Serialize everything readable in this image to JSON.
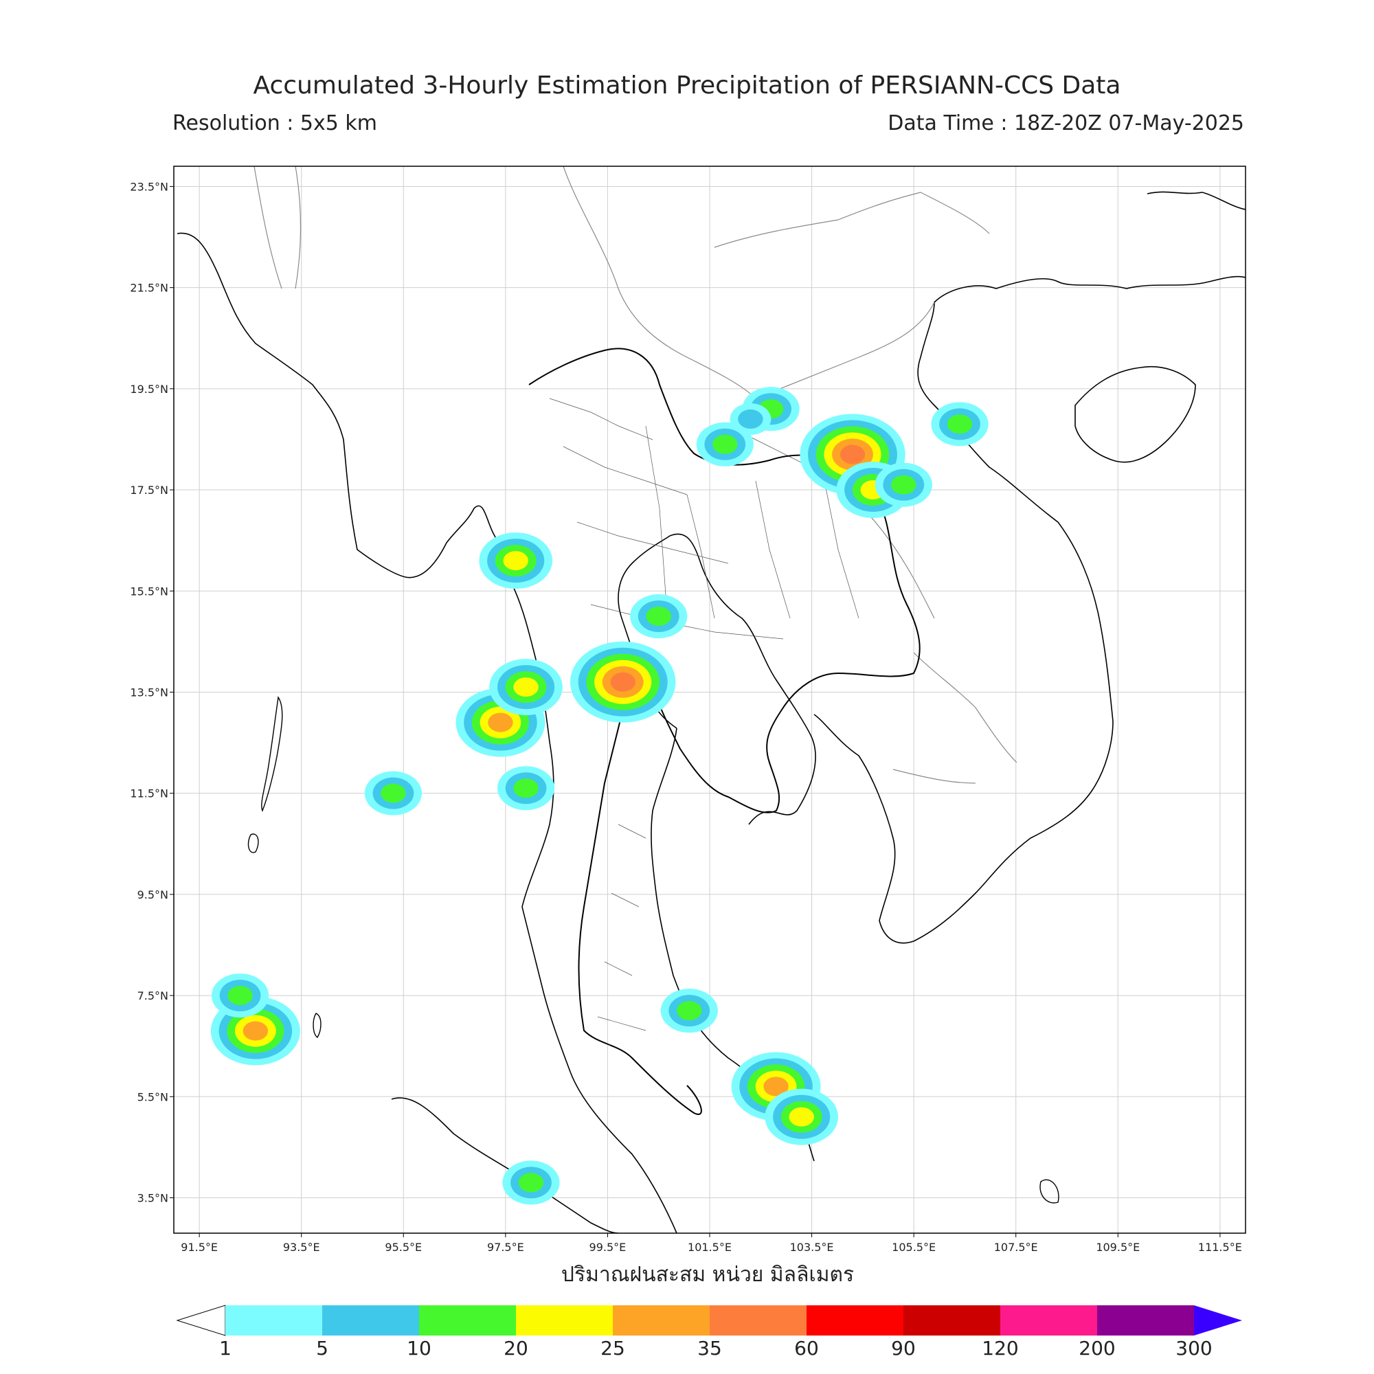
{
  "header": {
    "title": "Accumulated 3-Hourly Estimation Precipitation of PERSIANN-CCS Data",
    "resolution": "Resolution : 5x5 km",
    "data_time": "Data Time : 18Z-20Z 07-May-2025"
  },
  "map": {
    "lon_range": [
      91.0,
      112.0
    ],
    "lat_range": [
      2.8,
      23.9
    ],
    "lat_ticks": [
      {
        "value": 23.5,
        "label": "23.5°N"
      },
      {
        "value": 21.5,
        "label": "21.5°N"
      },
      {
        "value": 19.5,
        "label": "19.5°N"
      },
      {
        "value": 17.5,
        "label": "17.5°N"
      },
      {
        "value": 15.5,
        "label": "15.5°N"
      },
      {
        "value": 13.5,
        "label": "13.5°N"
      },
      {
        "value": 11.5,
        "label": "11.5°N"
      },
      {
        "value": 9.5,
        "label": "9.5°N"
      },
      {
        "value": 7.5,
        "label": "7.5°N"
      },
      {
        "value": 5.5,
        "label": "5.5°N"
      },
      {
        "value": 3.5,
        "label": "3.5°N"
      }
    ],
    "lon_ticks": [
      {
        "value": 91.5,
        "label": "91.5°E"
      },
      {
        "value": 93.5,
        "label": "93.5°E"
      },
      {
        "value": 95.5,
        "label": "95.5°E"
      },
      {
        "value": 97.5,
        "label": "97.5°E"
      },
      {
        "value": 99.5,
        "label": "99.5°E"
      },
      {
        "value": 101.5,
        "label": "101.5°E"
      },
      {
        "value": 103.5,
        "label": "103.5°E"
      },
      {
        "value": 105.5,
        "label": "105.5°E"
      },
      {
        "value": 107.5,
        "label": "107.5°E"
      },
      {
        "value": 109.5,
        "label": "109.5°E"
      },
      {
        "value": 111.5,
        "label": "111.5°E"
      }
    ],
    "grid": true,
    "rain_cells": [
      {
        "lon": 104.3,
        "lat": 18.2,
        "mm": 35
      },
      {
        "lon": 104.7,
        "lat": 17.5,
        "mm": 20
      },
      {
        "lon": 101.8,
        "lat": 18.4,
        "mm": 10
      },
      {
        "lon": 102.7,
        "lat": 19.1,
        "mm": 10
      },
      {
        "lon": 102.3,
        "lat": 18.9,
        "mm": 5
      },
      {
        "lon": 97.4,
        "lat": 12.9,
        "mm": 25
      },
      {
        "lon": 97.9,
        "lat": 13.6,
        "mm": 20
      },
      {
        "lon": 97.7,
        "lat": 16.1,
        "mm": 20
      },
      {
        "lon": 99.8,
        "lat": 13.7,
        "mm": 35
      },
      {
        "lon": 100.5,
        "lat": 15.0,
        "mm": 10
      },
      {
        "lon": 102.8,
        "lat": 5.7,
        "mm": 25
      },
      {
        "lon": 103.3,
        "lat": 5.1,
        "mm": 20
      },
      {
        "lon": 92.6,
        "lat": 6.8,
        "mm": 25
      },
      {
        "lon": 97.9,
        "lat": 11.6,
        "mm": 10
      },
      {
        "lon": 95.3,
        "lat": 11.5,
        "mm": 10
      },
      {
        "lon": 98.0,
        "lat": 3.8,
        "mm": 10
      },
      {
        "lon": 106.4,
        "lat": 18.8,
        "mm": 10
      },
      {
        "lon": 105.3,
        "lat": 17.6,
        "mm": 10
      },
      {
        "lon": 101.1,
        "lat": 7.2,
        "mm": 10
      },
      {
        "lon": 92.3,
        "lat": 7.5,
        "mm": 10
      }
    ]
  },
  "axis": {
    "units_label": "ปริมาณฝนสะสม หน่วย มิลลิเมตร"
  },
  "colorbar": {
    "bounds": [
      "1",
      "5",
      "10",
      "20",
      "25",
      "35",
      "60",
      "90",
      "120",
      "200",
      "300"
    ],
    "colors": [
      "#7dfcff",
      "#40c8ea",
      "#46f72d",
      "#fdfb00",
      "#fda427",
      "#fd7e3c",
      "#fd0000",
      "#cc0000",
      "#fd1a8c",
      "#8b0090"
    ],
    "under_color": "#ffffff",
    "over_color": "#3a00ff"
  }
}
